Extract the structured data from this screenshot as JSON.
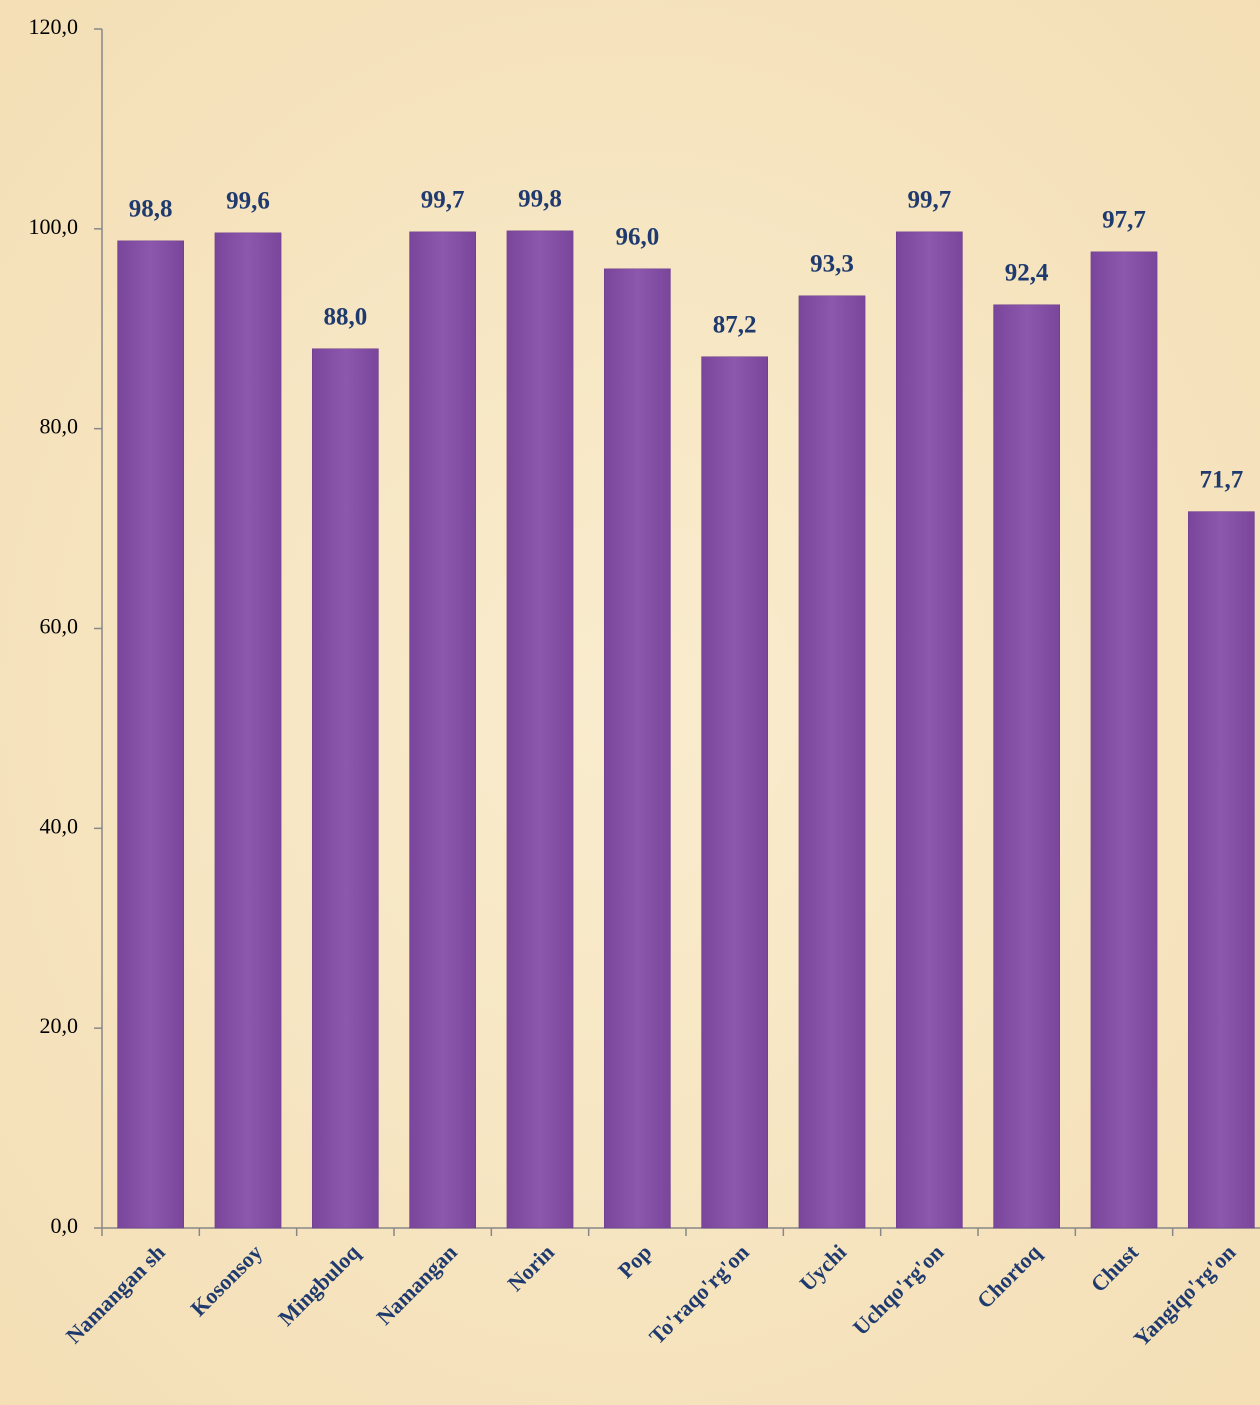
{
  "chart_data": {
    "type": "bar",
    "categories": [
      "Namangan sh",
      "Kosonsoy",
      "Mingbuloq",
      "Namangan",
      "Norin",
      "Pop",
      "To'raqo'rg'on",
      "Uychi",
      "Uchqo'rg'on",
      "Chortoq",
      "Chust",
      "Yangiqo'rg'on"
    ],
    "values": [
      98.8,
      99.6,
      88.0,
      99.7,
      99.8,
      96.0,
      87.2,
      93.3,
      99.7,
      92.4,
      97.7,
      71.7
    ],
    "value_labels": [
      "98,8",
      "99,6",
      "88,0",
      "99,7",
      "99,8",
      "96,0",
      "87,2",
      "93,3",
      "99,7",
      "92,4",
      "97,7",
      "71,7"
    ],
    "color": "#8652a8",
    "ylim": [
      0,
      120
    ],
    "yticks": [
      {
        "value": 0,
        "label": "0,0"
      },
      {
        "value": 20,
        "label": "20,0"
      },
      {
        "value": 40,
        "label": "40,0"
      },
      {
        "value": 60,
        "label": "60,0"
      },
      {
        "value": 80,
        "label": "80,0"
      },
      {
        "value": 100,
        "label": "100,0"
      },
      {
        "value": 120,
        "label": "120,0"
      }
    ],
    "grid": false
  }
}
